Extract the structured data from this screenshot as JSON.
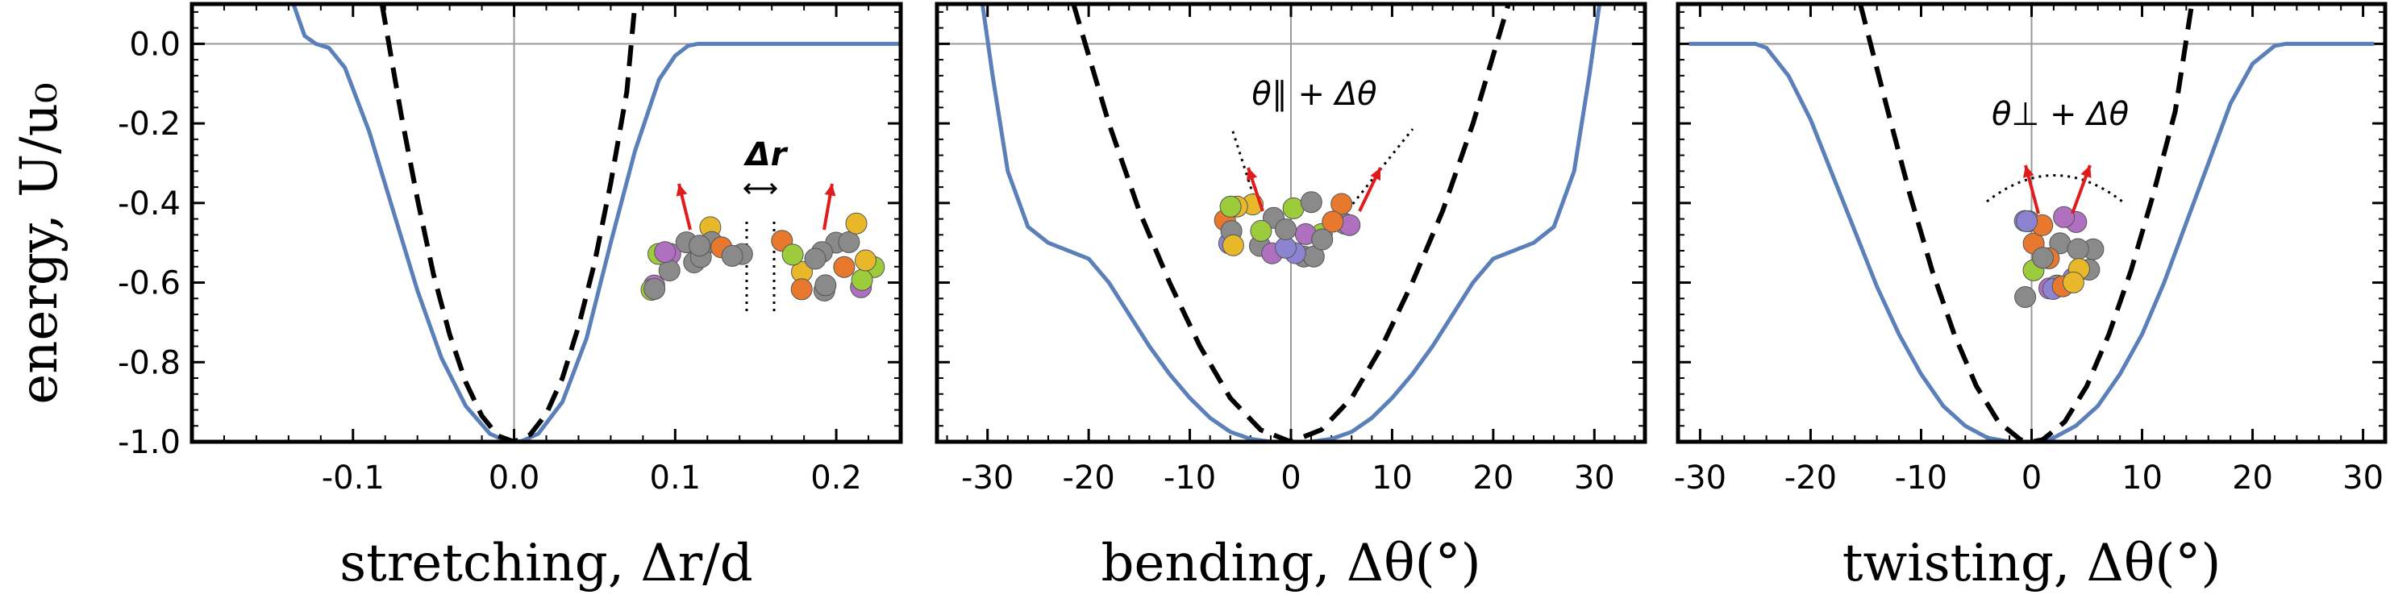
{
  "ylabel": "energy,  U/u₀",
  "chart_data": [
    {
      "type": "line",
      "xlabel": "stretching,  Δr/d",
      "xlim": [
        -0.2,
        0.24
      ],
      "ylim": [
        -1.0,
        0.1
      ],
      "xticks": [
        -0.1,
        0.0,
        0.1,
        0.2
      ],
      "xtick_labels": [
        "-0.1",
        "0.0",
        "0.1",
        "0.2"
      ],
      "yticks": [
        0.0,
        -0.2,
        -0.4,
        -0.6,
        -0.8,
        -1.0
      ],
      "ytick_labels": [
        "0.0",
        "-0.2",
        "-0.4",
        "-0.6",
        "-0.8",
        "-1.0"
      ],
      "annotation": "Δr",
      "series": [
        {
          "style": "solid",
          "color": "#5b7fb8",
          "x": [
            -0.137,
            -0.13,
            -0.123,
            -0.115,
            -0.105,
            -0.09,
            -0.075,
            -0.06,
            -0.045,
            -0.03,
            -0.015,
            -0.005,
            0.0,
            0.005,
            0.015,
            0.03,
            0.045,
            0.06,
            0.075,
            0.09,
            0.1,
            0.108,
            0.114,
            0.12,
            0.14,
            0.24
          ],
          "y": [
            0.1,
            0.02,
            0.0,
            -0.01,
            -0.06,
            -0.22,
            -0.42,
            -0.62,
            -0.79,
            -0.91,
            -0.98,
            -0.998,
            -1.0,
            -0.998,
            -0.98,
            -0.9,
            -0.74,
            -0.5,
            -0.27,
            -0.09,
            -0.03,
            -0.005,
            0.0,
            0.0,
            0.0,
            0.0
          ]
        },
        {
          "style": "dashed",
          "color": "#000000",
          "x": [
            -0.082,
            -0.07,
            -0.06,
            -0.05,
            -0.04,
            -0.03,
            -0.02,
            -0.01,
            0.0,
            0.01,
            0.02,
            0.03,
            0.04,
            0.05,
            0.06,
            0.07,
            0.075
          ],
          "y": [
            0.1,
            -0.18,
            -0.39,
            -0.58,
            -0.73,
            -0.85,
            -0.935,
            -0.985,
            -1.0,
            -0.982,
            -0.93,
            -0.84,
            -0.71,
            -0.55,
            -0.35,
            -0.12,
            0.1
          ]
        }
      ]
    },
    {
      "type": "line",
      "xlabel": "bending,  Δθ(°)",
      "xlim": [
        -35,
        35
      ],
      "ylim": [
        -1.0,
        0.1
      ],
      "xticks": [
        -30,
        -20,
        -10,
        0,
        10,
        20,
        30
      ],
      "xtick_labels": [
        "-30",
        "-20",
        "-10",
        "0",
        "10",
        "20",
        "30"
      ],
      "yticks": [
        0.0,
        -0.2,
        -0.4,
        -0.6,
        -0.8,
        -1.0
      ],
      "annotation": "θ∥ + Δθ",
      "series": [
        {
          "style": "solid",
          "color": "#5b7fb8",
          "x": [
            -30.5,
            -29.5,
            -28,
            -26,
            -24,
            -22,
            -20,
            -18,
            -16,
            -14,
            -12,
            -10,
            -8,
            -6,
            -4,
            -2,
            0,
            2,
            4,
            6,
            8,
            10,
            12,
            14,
            16,
            18,
            20,
            22,
            24,
            26,
            28,
            29.5,
            30.5
          ],
          "y": [
            0.1,
            -0.08,
            -0.32,
            -0.46,
            -0.5,
            -0.52,
            -0.54,
            -0.6,
            -0.68,
            -0.76,
            -0.83,
            -0.89,
            -0.94,
            -0.975,
            -0.993,
            -1.0,
            -1.0,
            -1.0,
            -0.993,
            -0.975,
            -0.94,
            -0.89,
            -0.83,
            -0.76,
            -0.68,
            -0.6,
            -0.54,
            -0.52,
            -0.5,
            -0.46,
            -0.32,
            -0.08,
            0.1
          ]
        },
        {
          "style": "dashed",
          "color": "#000000",
          "x": [
            -21.5,
            -18,
            -15,
            -12,
            -9,
            -6,
            -3,
            0,
            3,
            6,
            9,
            12,
            15,
            18,
            21.5
          ],
          "y": [
            0.1,
            -0.2,
            -0.42,
            -0.6,
            -0.76,
            -0.89,
            -0.97,
            -1.0,
            -0.97,
            -0.89,
            -0.76,
            -0.6,
            -0.42,
            -0.2,
            0.1
          ]
        }
      ]
    },
    {
      "type": "line",
      "xlabel": "twisting,  Δθ(°)",
      "xlim": [
        -32,
        32
      ],
      "ylim": [
        -1.0,
        0.1
      ],
      "xticks": [
        -30,
        -20,
        -10,
        0,
        10,
        20,
        30
      ],
      "xtick_labels": [
        "-30",
        "-20",
        "-10",
        "0",
        "10",
        "20",
        "30"
      ],
      "yticks": [
        0.0,
        -0.2,
        -0.4,
        -0.6,
        -0.8,
        -1.0
      ],
      "annotation": "θ⊥ + Δθ",
      "series": [
        {
          "style": "solid",
          "color": "#5b7fb8",
          "x": [
            -31,
            -28,
            -25,
            -24,
            -22,
            -20,
            -18,
            -16,
            -14,
            -12,
            -10,
            -8,
            -6,
            -4,
            -2,
            0,
            2,
            4,
            6,
            8,
            10,
            12,
            14,
            16,
            18,
            20,
            22,
            23,
            26,
            31
          ],
          "y": [
            0.0,
            0.0,
            0.0,
            -0.01,
            -0.08,
            -0.19,
            -0.33,
            -0.47,
            -0.61,
            -0.73,
            -0.83,
            -0.91,
            -0.96,
            -0.99,
            -1.0,
            -1.0,
            -0.99,
            -0.96,
            -0.91,
            -0.83,
            -0.73,
            -0.6,
            -0.45,
            -0.3,
            -0.15,
            -0.05,
            -0.005,
            0.0,
            0.0,
            0.0
          ]
        },
        {
          "style": "dashed",
          "color": "#000000",
          "x": [
            -15.5,
            -13,
            -11,
            -9,
            -7,
            -5,
            -3,
            -1,
            0,
            1,
            3,
            5,
            7,
            9,
            11,
            13,
            14.5
          ],
          "y": [
            0.1,
            -0.17,
            -0.38,
            -0.57,
            -0.73,
            -0.86,
            -0.95,
            -0.995,
            -1.0,
            -0.995,
            -0.95,
            -0.86,
            -0.73,
            -0.57,
            -0.38,
            -0.17,
            0.1
          ]
        }
      ]
    }
  ],
  "colors": {
    "curve": "#5b7fb8",
    "harmonic": "#000000",
    "zero_line": "#9a9a9a",
    "frame": "#000000",
    "particle_grey": "#8a8a8a",
    "particle_orange": "#e8782e",
    "particle_yellow": "#e8b82a",
    "particle_purple": "#b070c0",
    "particle_lavender": "#8c84d0",
    "particle_green": "#9ccc3c",
    "particle_blue": "#5aa8e0",
    "arrow": "#e01b1b"
  }
}
